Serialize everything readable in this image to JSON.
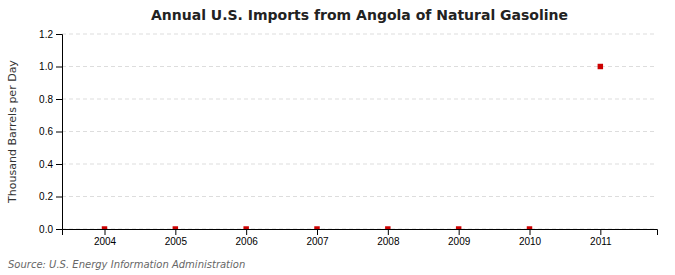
{
  "chart_data": {
    "type": "scatter",
    "title": "Annual U.S. Imports from Angola of Natural Gasoline",
    "ylabel": "Thousand Barrels per Day",
    "source": "Source: U.S. Energy Information Administration",
    "x": [
      2004,
      2005,
      2006,
      2007,
      2008,
      2009,
      2010,
      2011
    ],
    "values": [
      0.0,
      0.0,
      0.0,
      0.0,
      0.0,
      0.0,
      0.0,
      1.0
    ],
    "color": "#CC0000",
    "marker": "square",
    "xlim": [
      2003.4,
      2011.8
    ],
    "ylim": [
      0.0,
      1.2
    ],
    "xticks": [
      2004,
      2005,
      2006,
      2007,
      2008,
      2009,
      2010,
      2011
    ],
    "yticks": [
      {
        "value": 0.0,
        "label": "0.0"
      },
      0.2,
      0.4,
      0.6,
      0.8,
      {
        "value": 1.0,
        "label": "1.0"
      },
      1.2
    ],
    "grid": true
  }
}
